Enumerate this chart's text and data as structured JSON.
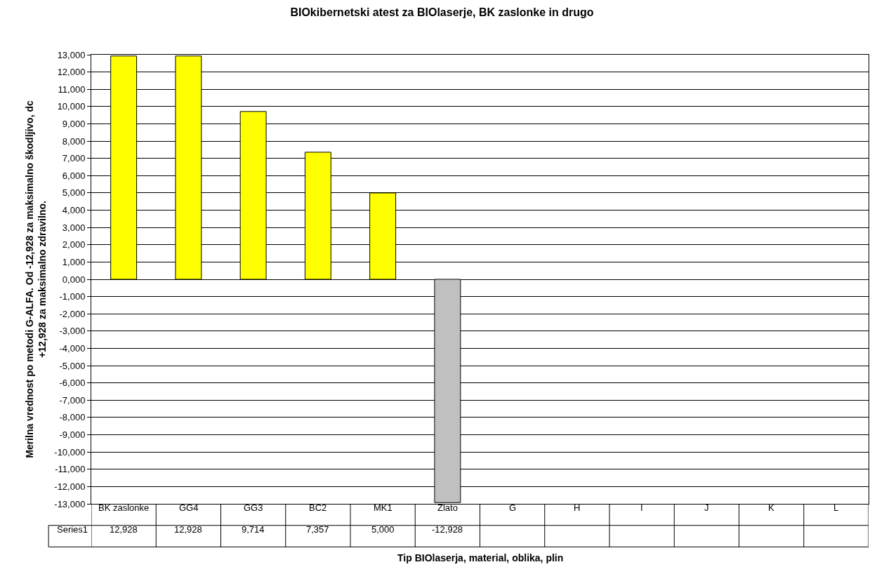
{
  "chart_data": {
    "type": "bar",
    "title": "BIOkibernetski atest za BIOlaserje, BK zaslonke in drugo",
    "xlabel": "Tip BIOlaserja, material, oblika, plin",
    "ylabel": "Merilna vrednost po metodi G-ALFA. Od -12,928 za maksimalno škodljivo, dc\n+12,928 za maksimalno zdravilno.",
    "categories": [
      "BK zaslonke",
      "GG4",
      "GG3",
      "BC2",
      "MK1",
      "Zlato",
      "G",
      "H",
      "I",
      "J",
      "K",
      "L"
    ],
    "series": [
      {
        "name": "Series1",
        "colors": [
          "#ffff00",
          "#ffff00",
          "#ffff00",
          "#ffff00",
          "#ffff00",
          "#c0c0c0",
          null,
          null,
          null,
          null,
          null,
          null
        ],
        "values": [
          12928,
          12928,
          9714,
          7357,
          5000,
          -12928,
          null,
          null,
          null,
          null,
          null,
          null
        ],
        "value_labels": [
          "12,928",
          "12,928",
          "9,714",
          "7,357",
          "5,000",
          "-12,928",
          null,
          null,
          null,
          null,
          null,
          null
        ]
      }
    ],
    "ylim": [
      -13000,
      13000
    ],
    "yticks": [
      {
        "value": -13000,
        "label": "-13,000"
      },
      {
        "value": -12000,
        "label": "-12,000"
      },
      {
        "value": -11000,
        "label": "-11,000"
      },
      {
        "value": -10000,
        "label": "-10,000"
      },
      {
        "value": -9000,
        "label": "-9,000"
      },
      {
        "value": -8000,
        "label": "-8,000"
      },
      {
        "value": -7000,
        "label": "-7,000"
      },
      {
        "value": -6000,
        "label": "-6,000"
      },
      {
        "value": -5000,
        "label": "-5,000"
      },
      {
        "value": -4000,
        "label": "-4,000"
      },
      {
        "value": -3000,
        "label": "-3,000"
      },
      {
        "value": -2000,
        "label": "-2,000"
      },
      {
        "value": -1000,
        "label": "-1,000"
      },
      {
        "value": 0,
        "label": "0,000"
      },
      {
        "value": 1000,
        "label": "1,000"
      },
      {
        "value": 2000,
        "label": "2,000"
      },
      {
        "value": 3000,
        "label": "3,000"
      },
      {
        "value": 4000,
        "label": "4,000"
      },
      {
        "value": 5000,
        "label": "5,000"
      },
      {
        "value": 6000,
        "label": "6,000"
      },
      {
        "value": 7000,
        "label": "7,000"
      },
      {
        "value": 8000,
        "label": "8,000"
      },
      {
        "value": 9000,
        "label": "9,000"
      },
      {
        "value": 10000,
        "label": "10,000"
      },
      {
        "value": 11000,
        "label": "11,000"
      },
      {
        "value": 12000,
        "label": "12,000"
      },
      {
        "value": 13000,
        "label": "13,000"
      }
    ],
    "grid": "y"
  }
}
